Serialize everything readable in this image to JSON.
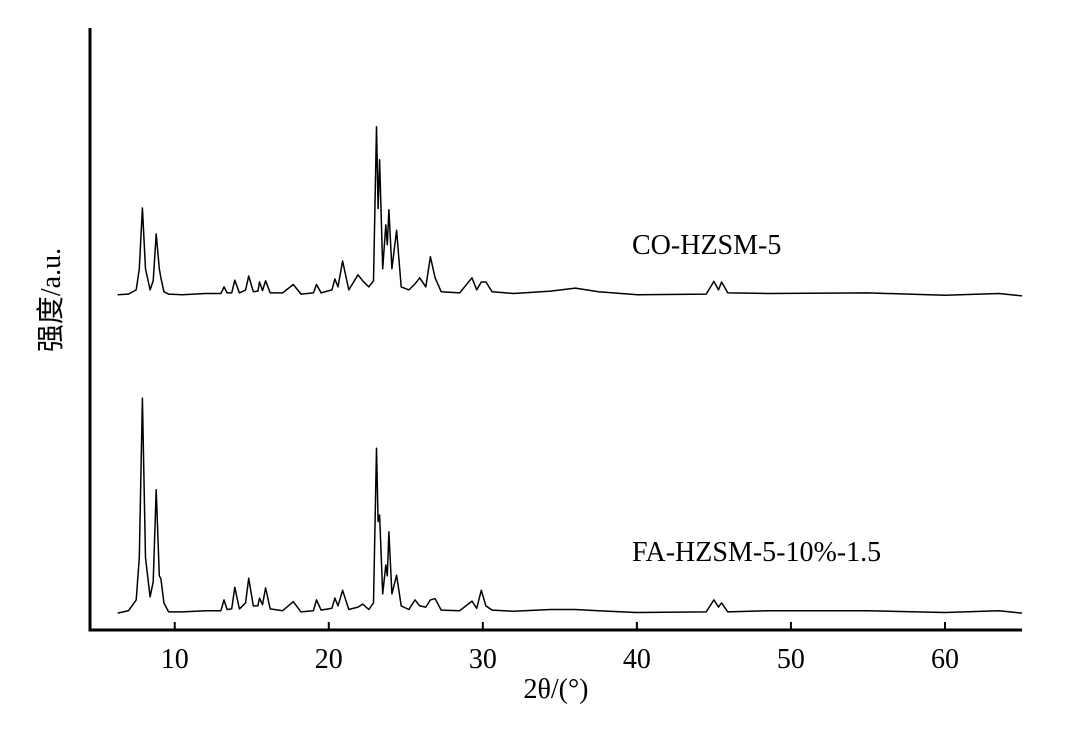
{
  "chart_data": {
    "type": "line",
    "x_label": "2θ/(°)",
    "y_label": "强度/a.u.",
    "xlim": [
      4.5,
      65
    ],
    "ylim": [
      0,
      100
    ],
    "xticks": [
      10,
      20,
      30,
      40,
      50,
      60
    ],
    "x": [
      6.3,
      7.0,
      7.5,
      7.7,
      7.9,
      8.1,
      8.4,
      8.6,
      8.8,
      9.0,
      9.1,
      9.3,
      9.6,
      10.5,
      12.0,
      13.0,
      13.2,
      13.4,
      13.7,
      13.9,
      14.2,
      14.6,
      14.8,
      15.1,
      15.4,
      15.5,
      15.7,
      15.9,
      16.2,
      17.0,
      17.7,
      18.2,
      19.0,
      19.2,
      19.5,
      20.2,
      20.4,
      20.6,
      20.9,
      21.3,
      21.9,
      22.2,
      22.6,
      22.9,
      23.1,
      23.2,
      23.3,
      23.5,
      23.7,
      23.8,
      23.9,
      24.1,
      24.4,
      24.7,
      25.2,
      25.6,
      25.9,
      26.3,
      26.6,
      26.9,
      27.3,
      28.5,
      29.3,
      29.6,
      29.9,
      30.2,
      30.6,
      32.0,
      34.4,
      36.0,
      37.5,
      40.0,
      44.5,
      45.0,
      45.3,
      45.5,
      45.9,
      48.5,
      55.0,
      60.0,
      63.5,
      65.0
    ],
    "series": [
      {
        "name": "CO-HZSM-5",
        "color": "#000000",
        "values": [
          55.7,
          55.8,
          56.5,
          60,
          70.1,
          60,
          56.5,
          58,
          65.8,
          60,
          58.5,
          56.2,
          55.8,
          55.7,
          55.9,
          55.9,
          57,
          56,
          56,
          58.1,
          56,
          56.5,
          58.8,
          56.2,
          56.3,
          57.8,
          56.4,
          58,
          56,
          56,
          57.4,
          55.8,
          56,
          57.4,
          56,
          56.5,
          58.3,
          57,
          61.3,
          56.5,
          59,
          58,
          57,
          58,
          83.6,
          70,
          78.1,
          60,
          67.3,
          64,
          69.8,
          60,
          66.4,
          57,
          56.5,
          57.5,
          58.5,
          57,
          62,
          58.5,
          56.2,
          56,
          58.5,
          56.5,
          57.8,
          57.8,
          56.2,
          55.9,
          56.3,
          56.8,
          56.2,
          55.7,
          55.8,
          57.9,
          56.5,
          57.8,
          56,
          55.9,
          56,
          55.6,
          55.9,
          55.5
        ]
      },
      {
        "name": "FA-HZSM-5-10%-1.5",
        "color": "#000000",
        "values": [
          2.8,
          3.2,
          5.0,
          12,
          38.5,
          12,
          5.5,
          8,
          23.3,
          9,
          8.5,
          4.5,
          3.0,
          3.0,
          3.2,
          3.2,
          5.0,
          3.4,
          3.5,
          7.1,
          3.5,
          4.5,
          8.6,
          4.0,
          4.0,
          5.3,
          4.2,
          7.0,
          3.5,
          3.2,
          4.7,
          3.0,
          3.2,
          5.0,
          3.3,
          3.6,
          5.3,
          4.0,
          6.6,
          3.4,
          3.8,
          4.3,
          3.4,
          4.5,
          30.2,
          18,
          19.1,
          6,
          10.8,
          9,
          16.3,
          6,
          9.1,
          4.0,
          3.4,
          5.0,
          4.0,
          3.8,
          5.0,
          5.2,
          3.3,
          3.2,
          4.8,
          3.6,
          6.6,
          4.0,
          3.3,
          3.1,
          3.4,
          3.4,
          3.2,
          2.9,
          3.0,
          5.0,
          3.8,
          4.5,
          3.0,
          3.2,
          3.2,
          2.9,
          3.2,
          2.8
        ]
      }
    ]
  }
}
